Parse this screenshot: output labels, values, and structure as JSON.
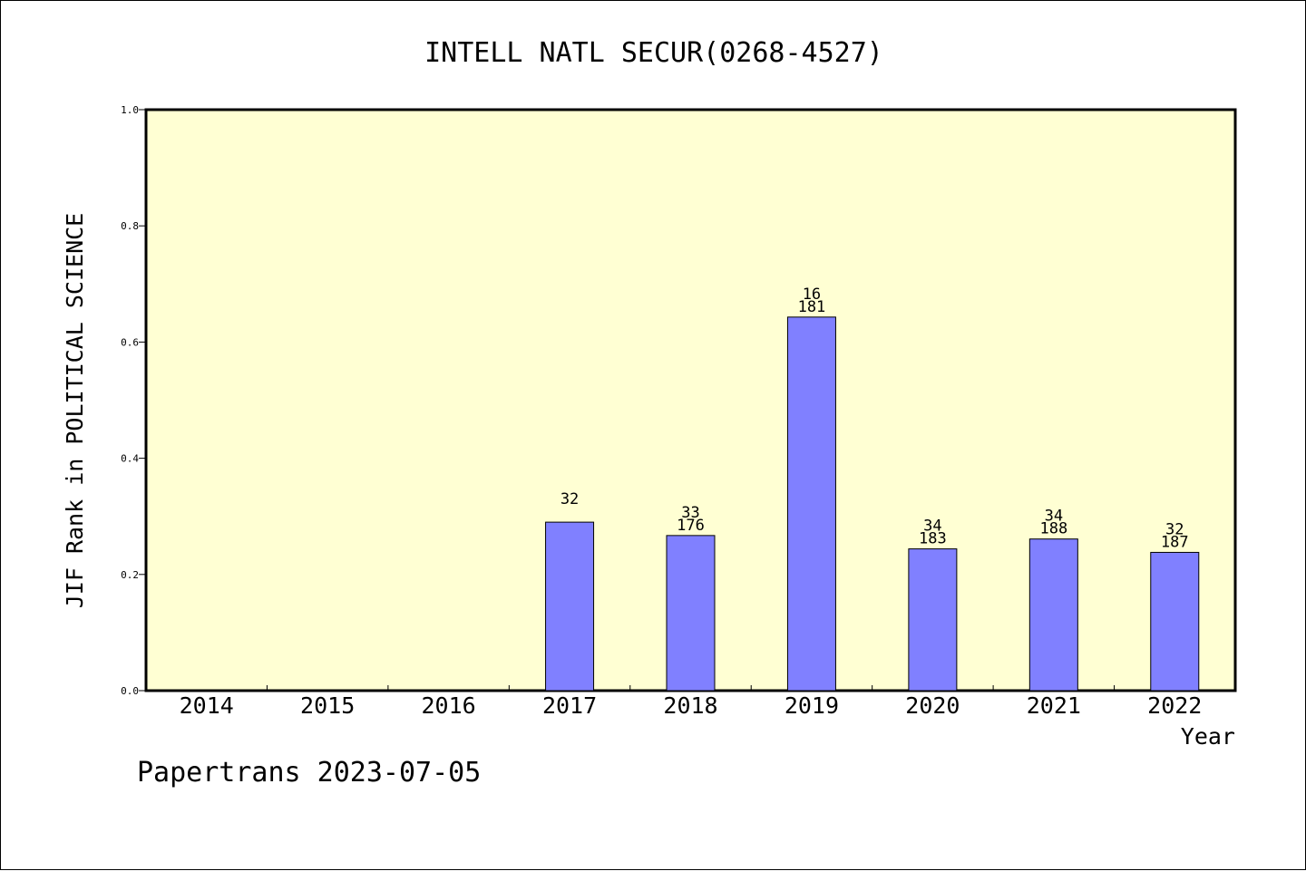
{
  "chart_data": {
    "type": "bar",
    "title": "INTELL NATL SECUR(0268-4527)",
    "xlabel": "Year",
    "ylabel": "JIF Rank in POLITICAL SCIENCE",
    "ylim": [
      0,
      1.0
    ],
    "yticks": [
      "0.0",
      "0.2",
      "0.4",
      "0.6",
      "0.8",
      "1.0"
    ],
    "categories": [
      "2014",
      "2015",
      "2016",
      "2017",
      "2018",
      "2019",
      "2020",
      "2021",
      "2022"
    ],
    "values": [
      null,
      null,
      null,
      0.29,
      0.267,
      0.643,
      0.244,
      0.261,
      0.238
    ],
    "label_top": [
      "",
      "",
      "",
      "32",
      "33",
      "16",
      "34",
      "34",
      "32"
    ],
    "label_bottom": [
      "",
      "",
      "",
      "",
      "176",
      "181",
      "183",
      "188",
      "187"
    ],
    "colors": {
      "plot_background": "#ffffd3",
      "bar": "#8080ff",
      "axis": "#000000"
    },
    "grid": false,
    "legend": "none"
  },
  "footer": {
    "text": "Papertrans 2023-07-05"
  }
}
